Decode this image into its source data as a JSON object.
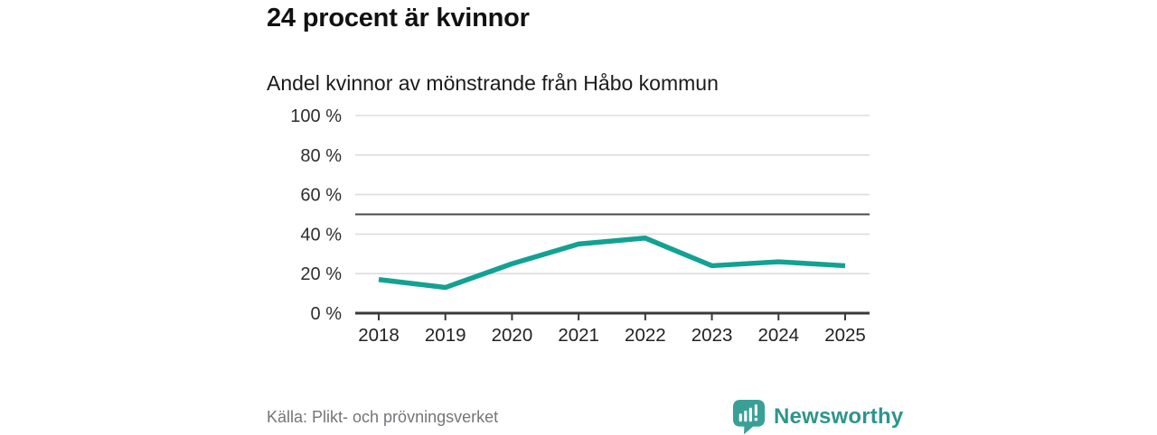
{
  "header": {
    "title": "24 procent är kvinnor",
    "subtitle": "Andel kvinnor av mönstrande från Håbo kommun"
  },
  "chart_data": {
    "type": "line",
    "title": "24 procent är kvinnor",
    "subtitle": "Andel kvinnor av mönstrande från Håbo kommun",
    "categories": [
      "2018",
      "2019",
      "2020",
      "2021",
      "2022",
      "2023",
      "2024",
      "2025"
    ],
    "series": [
      {
        "name": "Andel kvinnor av mönstrande",
        "values": [
          17,
          13,
          25,
          35,
          38,
          24,
          26,
          24
        ]
      }
    ],
    "ylim": [
      0,
      100
    ],
    "yticks": [
      0,
      20,
      40,
      60,
      80,
      100
    ],
    "ytick_labels": [
      "0 %",
      "20 %",
      "40 %",
      "60 %",
      "80 %",
      "100 %"
    ],
    "xlabel": "",
    "ylabel": "",
    "reference_line": 50,
    "grid": "horizontal",
    "legend": "none",
    "line_color": "#12a192"
  },
  "footer": {
    "source": "Källa: Plikt- och prövningsverket",
    "brand": "Newsworthy"
  },
  "icons": {
    "brand_logo": "bar-chart-pin-icon"
  },
  "colors": {
    "accent_teal": "#12a192",
    "brand_teal": "#2e958c",
    "logo_teal": "#38a096",
    "grid_gray": "#dddddd",
    "reference_dark": "#4a4a4a",
    "axis_dark": "#3a3a3a",
    "tick_text": "#2e2e2e",
    "title_text": "#111111",
    "muted_text": "#75757a"
  }
}
